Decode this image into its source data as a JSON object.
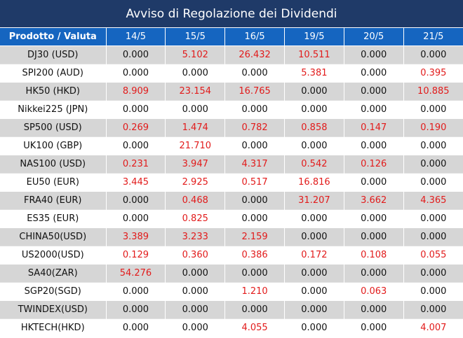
{
  "title": "Avviso di Regolazione dei Dividendi",
  "headers": [
    "Prodotto / Valuta",
    "14/5",
    "15/5",
    "16/5",
    "19/5",
    "20/5",
    "21/5"
  ],
  "rows": [
    {
      "product": "DJ30 (USD)",
      "values": [
        "0.000",
        "5.102",
        "26.432",
        "10.511",
        "0.000",
        "0.000"
      ]
    },
    {
      "product": "SPI200 (AUD)",
      "values": [
        "0.000",
        "0.000",
        "0.000",
        "5.381",
        "0.000",
        "0.395"
      ]
    },
    {
      "product": "HK50 (HKD)",
      "values": [
        "8.909",
        "23.154",
        "16.765",
        "0.000",
        "0.000",
        "10.885"
      ]
    },
    {
      "product": "Nikkei225 (JPN)",
      "values": [
        "0.000",
        "0.000",
        "0.000",
        "0.000",
        "0.000",
        "0.000"
      ]
    },
    {
      "product": "SP500 (USD)",
      "values": [
        "0.269",
        "1.474",
        "0.782",
        "0.858",
        "0.147",
        "0.190"
      ]
    },
    {
      "product": "UK100 (GBP)",
      "values": [
        "0.000",
        "21.710",
        "0.000",
        "0.000",
        "0.000",
        "0.000"
      ]
    },
    {
      "product": "NAS100 (USD)",
      "values": [
        "0.231",
        "3.947",
        "4.317",
        "0.542",
        "0.126",
        "0.000"
      ]
    },
    {
      "product": "EU50 (EUR)",
      "values": [
        "3.445",
        "2.925",
        "0.517",
        "16.816",
        "0.000",
        "0.000"
      ]
    },
    {
      "product": "FRA40 (EUR)",
      "values": [
        "0.000",
        "0.468",
        "0.000",
        "31.207",
        "3.662",
        "4.365"
      ]
    },
    {
      "product": "ES35 (EUR)",
      "values": [
        "0.000",
        "0.825",
        "0.000",
        "0.000",
        "0.000",
        "0.000"
      ]
    },
    {
      "product": "CHINA50(USD)",
      "values": [
        "3.389",
        "3.233",
        "2.159",
        "0.000",
        "0.000",
        "0.000"
      ]
    },
    {
      "product": "US2000(USD)",
      "values": [
        "0.129",
        "0.360",
        "0.386",
        "0.172",
        "0.108",
        "0.055"
      ]
    },
    {
      "product": "SA40(ZAR)",
      "values": [
        "54.276",
        "0.000",
        "0.000",
        "0.000",
        "0.000",
        "0.000"
      ]
    },
    {
      "product": "SGP20(SGD)",
      "values": [
        "0.000",
        "0.000",
        "1.210",
        "0.000",
        "0.063",
        "0.000"
      ]
    },
    {
      "product": "TWINDEX(USD)",
      "values": [
        "0.000",
        "0.000",
        "0.000",
        "0.000",
        "0.000",
        "0.000"
      ]
    },
    {
      "product": "HKTECH(HKD)",
      "values": [
        "0.000",
        "0.000",
        "4.055",
        "0.000",
        "0.000",
        "4.007"
      ]
    }
  ],
  "colors": {
    "title_bg": "#1f3a68",
    "header_bg": "#1565c0",
    "positive_value": "#e21b1b",
    "zero_value": "#111111",
    "stripe": "#d6d6d6"
  }
}
